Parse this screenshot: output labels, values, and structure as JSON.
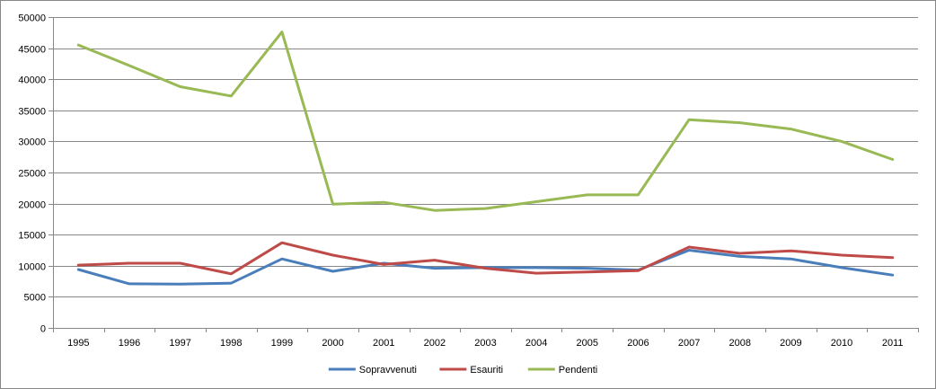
{
  "chart_data": {
    "type": "line",
    "categories": [
      "1995",
      "1996",
      "1997",
      "1998",
      "1999",
      "2000",
      "2001",
      "2002",
      "2003",
      "2004",
      "2005",
      "2006",
      "2007",
      "2008",
      "2009",
      "2010",
      "2011"
    ],
    "series": [
      {
        "name": "Sopravvenuti",
        "color": "#4a7ebb",
        "values": [
          9400,
          7100,
          7050,
          7200,
          11100,
          9100,
          10400,
          9600,
          9700,
          9700,
          9600,
          9300,
          12500,
          11500,
          11100,
          9700,
          8500
        ]
      },
      {
        "name": "Esauriti",
        "color": "#be4b48",
        "values": [
          10100,
          10400,
          10400,
          8700,
          13700,
          11700,
          10200,
          10900,
          9600,
          8800,
          9000,
          9200,
          13000,
          12000,
          12400,
          11700,
          11300
        ]
      },
      {
        "name": "Pendenti",
        "color": "#98b954",
        "values": [
          45500,
          42200,
          38800,
          37300,
          47600,
          19900,
          20200,
          18900,
          19200,
          20300,
          21400,
          21400,
          33500,
          33000,
          32000,
          30000,
          27100
        ]
      }
    ],
    "yticks": [
      "0",
      "5000",
      "10000",
      "15000",
      "20000",
      "25000",
      "30000",
      "35000",
      "40000",
      "45000",
      "50000"
    ],
    "ylim": [
      0,
      50000
    ],
    "grid": true,
    "legend": "bottom"
  }
}
